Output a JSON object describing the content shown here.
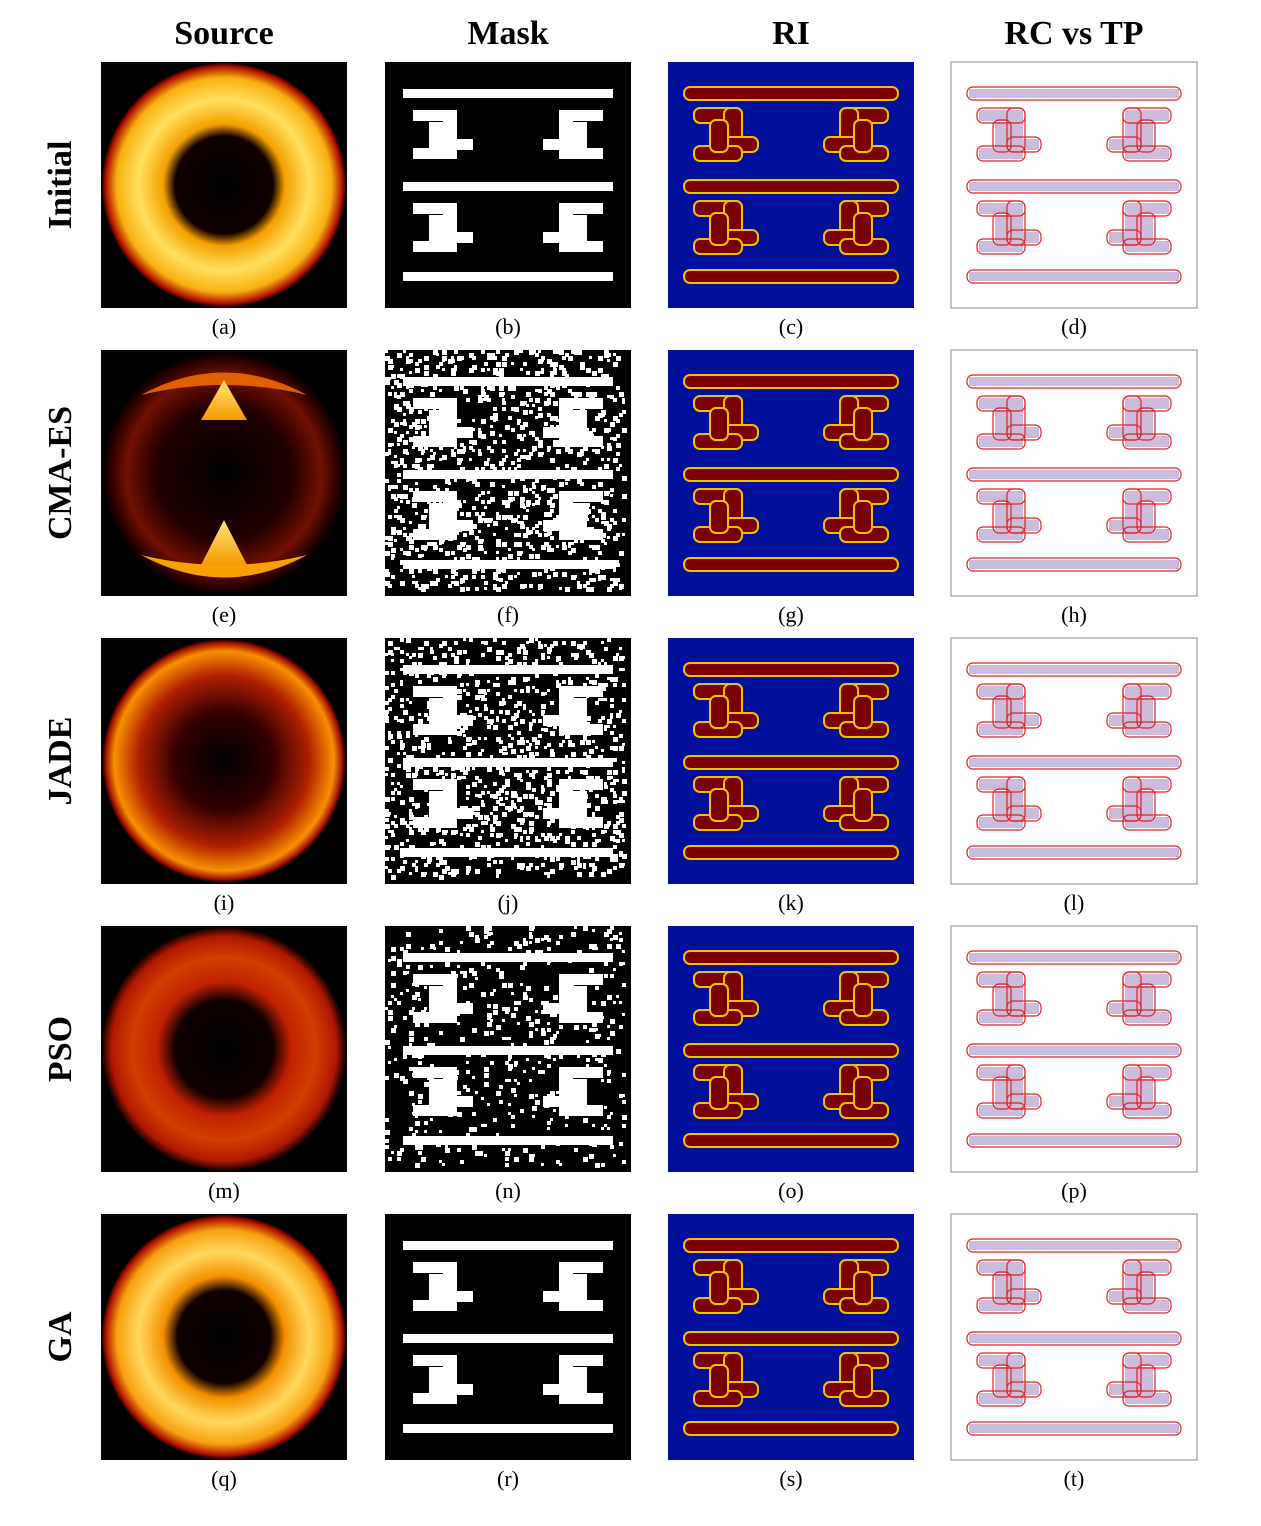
{
  "columns": [
    "Source",
    "Mask",
    "RI",
    "RC vs TP"
  ],
  "rows": [
    "Initial",
    "CMA-ES",
    "JADE",
    "PSO",
    "GA"
  ],
  "captions": [
    "(a)",
    "(b)",
    "(c)",
    "(d)",
    "(e)",
    "(f)",
    "(g)",
    "(h)",
    "(i)",
    "(j)",
    "(k)",
    "(l)",
    "(m)",
    "(n)",
    "(o)",
    "(p)",
    "(q)",
    "(r)",
    "(s)",
    "(t)"
  ]
}
